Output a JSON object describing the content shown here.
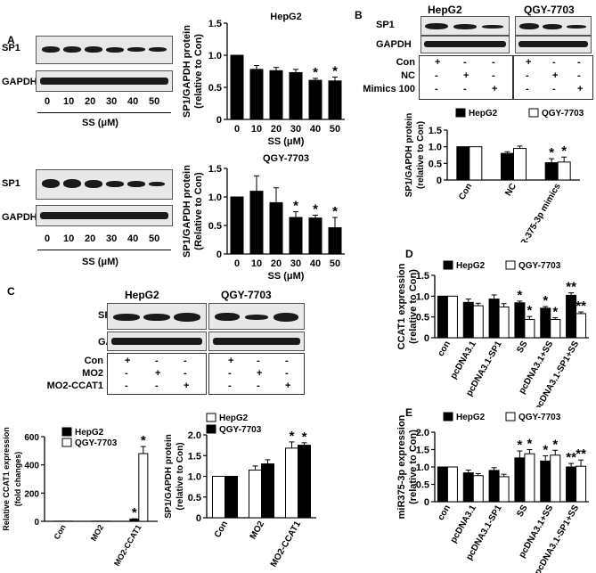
{
  "panel_labels": {
    "A": "A",
    "B": "B",
    "C": "C",
    "D": "D",
    "E": "E"
  },
  "blot_labels": {
    "sp1": "SP1",
    "gapdh": "GAPDH"
  },
  "panelA": {
    "top": {
      "doses": [
        "0",
        "10",
        "20",
        "30",
        "40",
        "50"
      ],
      "xaxis_label": "SS (μM)"
    },
    "bottom": {
      "doses": [
        "0",
        "10",
        "20",
        "30",
        "40",
        "50"
      ],
      "xaxis_label": "SS (μM)"
    }
  },
  "panelB": {
    "cell_lines": [
      "HepG2",
      "QGY-7703"
    ],
    "conditions": [
      {
        "name": "Con",
        "marks": [
          "+",
          "-",
          "-",
          "+",
          "-",
          "-"
        ]
      },
      {
        "name": "NC",
        "marks": [
          "-",
          "+",
          "-",
          "-",
          "+",
          "-"
        ]
      },
      {
        "name": "Mimics 100",
        "marks": [
          "-",
          "-",
          "+",
          "-",
          "-",
          "+"
        ]
      }
    ]
  },
  "panelC": {
    "cell_lines": [
      "HepG2",
      "QGY-7703"
    ],
    "conditions": [
      {
        "name": "Con",
        "marks": [
          "+",
          "-",
          "-",
          "+",
          "-",
          "-"
        ]
      },
      {
        "name": "MO2",
        "marks": [
          "-",
          "+",
          "-",
          "-",
          "+",
          "-"
        ]
      },
      {
        "name": "MO2-CCAT1",
        "marks": [
          "-",
          "-",
          "+",
          "-",
          "-",
          "+"
        ]
      }
    ]
  },
  "chart_data": [
    {
      "id": "A1",
      "type": "bar",
      "title": "HepG2",
      "ylabel": "SP1/GAPDH protein (relative to Con)",
      "xlabel": "SS (μM)",
      "categories": [
        "0",
        "10",
        "20",
        "30",
        "40",
        "50"
      ],
      "series": [
        {
          "values": [
            1.0,
            0.78,
            0.76,
            0.73,
            0.61,
            0.6
          ],
          "errors": [
            0,
            0.06,
            0.05,
            0.05,
            0.03,
            0.06
          ],
          "sig": [
            "",
            "",
            "",
            "",
            "*",
            "*"
          ],
          "color": "#000000"
        }
      ],
      "ylim": [
        0,
        1.5
      ],
      "yticks": [
        "0",
        "0.5",
        "1.0",
        "1.5"
      ]
    },
    {
      "id": "A2",
      "type": "bar",
      "title": "QGY-7703",
      "ylabel": "SP1/GAPDH protein (Relative to Con)",
      "xlabel": "SS (μM)",
      "categories": [
        "0",
        "10",
        "20",
        "30",
        "40",
        "50"
      ],
      "series": [
        {
          "values": [
            1.0,
            1.1,
            0.9,
            0.64,
            0.63,
            0.46
          ],
          "errors": [
            0,
            0.27,
            0.26,
            0.1,
            0.05,
            0.18
          ],
          "sig": [
            "",
            "",
            "",
            "*",
            "*",
            "*"
          ],
          "color": "#000000"
        }
      ],
      "ylim": [
        0,
        1.5
      ],
      "yticks": [
        "0",
        "0.5",
        "1.0",
        "1.5"
      ]
    },
    {
      "id": "B",
      "type": "bar",
      "ylabel": "SP1/GAPDH protein (relative to Con)",
      "categories": [
        "Con",
        "NC",
        "miR-375-3p mimics"
      ],
      "legend": [
        "HepG2",
        "QGY-7703"
      ],
      "series": [
        {
          "name": "HepG2",
          "values": [
            1.0,
            0.8,
            0.52
          ],
          "errors": [
            0,
            0.05,
            0.12
          ],
          "sig": [
            "",
            "",
            "*"
          ],
          "color": "#000000"
        },
        {
          "name": "QGY-7703",
          "values": [
            1.0,
            0.95,
            0.54
          ],
          "errors": [
            0,
            0.07,
            0.15
          ],
          "sig": [
            "",
            "",
            "*"
          ],
          "color": "#ffffff"
        }
      ],
      "ylim": [
        0,
        1.5
      ],
      "yticks": [
        "0",
        "0.5",
        "1.0",
        "1.5"
      ]
    },
    {
      "id": "C1",
      "type": "bar",
      "ylabel": "Relative CCAT1 expression (fold changes)",
      "categories": [
        "Con",
        "MO2",
        "MO2-CCAT1"
      ],
      "legend": [
        "HepG2",
        "QGY-7703"
      ],
      "series": [
        {
          "name": "HepG2",
          "values": [
            1,
            1,
            15
          ],
          "errors": [
            0,
            0,
            3
          ],
          "sig": [
            "",
            "",
            "*"
          ],
          "color": "#000000"
        },
        {
          "name": "QGY-7703",
          "values": [
            1,
            1,
            480
          ],
          "errors": [
            0,
            0,
            50
          ],
          "sig": [
            "",
            "",
            "*"
          ],
          "color": "#ffffff"
        }
      ],
      "ylim": [
        0,
        600
      ],
      "yticks": [
        "0",
        "200",
        "400",
        "600"
      ]
    },
    {
      "id": "C2",
      "type": "bar",
      "ylabel": "SP1/GAPDH protein (relative to Con)",
      "categories": [
        "Con",
        "MO2",
        "MO2-CCAT1"
      ],
      "legend": [
        "HepG2",
        "QGY-7703"
      ],
      "series": [
        {
          "name": "HepG2",
          "values": [
            1.0,
            1.15,
            1.68
          ],
          "errors": [
            0,
            0.1,
            0.15
          ],
          "sig": [
            "",
            "",
            "*"
          ],
          "color": "#ffffff"
        },
        {
          "name": "QGY-7703",
          "values": [
            1.0,
            1.3,
            1.75
          ],
          "errors": [
            0,
            0.1,
            0.06
          ],
          "sig": [
            "",
            "",
            "*"
          ],
          "color": "#000000"
        }
      ],
      "ylim": [
        0,
        2.0
      ],
      "yticks": [
        "0",
        "0.5",
        "1.0",
        "1.5",
        "2.0"
      ]
    },
    {
      "id": "D",
      "type": "bar",
      "ylabel": "CCAT1 expression (relative to Con)",
      "categories": [
        "con",
        "pcDNA3.1",
        "pcDNA3.1-SP1",
        "SS",
        "pcDNA3.1+SS",
        "pcDNA3.1-SP1+SS"
      ],
      "legend": [
        "HepG2",
        "QGY-7703"
      ],
      "series": [
        {
          "name": "HepG2",
          "values": [
            1.0,
            0.85,
            0.93,
            0.84,
            0.71,
            1.02
          ],
          "errors": [
            0,
            0.08,
            0.1,
            0.04,
            0.04,
            0.06
          ],
          "sig": [
            "",
            "",
            "",
            "*",
            "*",
            "**"
          ],
          "color": "#000000"
        },
        {
          "name": "QGY-7703",
          "values": [
            1.0,
            0.77,
            0.74,
            0.44,
            0.44,
            0.58
          ],
          "errors": [
            0,
            0.06,
            0.08,
            0.07,
            0.04,
            0.04
          ],
          "sig": [
            "",
            "",
            "",
            "*",
            "*",
            "**"
          ],
          "color": "#ffffff"
        }
      ],
      "ylim": [
        0,
        1.5
      ],
      "yticks": [
        "0",
        "0.5",
        "1.0",
        "1.5"
      ]
    },
    {
      "id": "E",
      "type": "bar",
      "ylabel": "miR375-3p expression (relative to Con)",
      "categories": [
        "con",
        "pcDNA3.1",
        "pcDNA3.1-SP1",
        "SS",
        "pcDNA3.1+SS",
        "pcDNA3.1-SP1+SS"
      ],
      "legend": [
        "HepG2",
        "QGY-7703"
      ],
      "series": [
        {
          "name": "HepG2",
          "values": [
            1.0,
            0.83,
            0.9,
            1.26,
            1.17,
            1.0
          ],
          "errors": [
            0,
            0.08,
            0.08,
            0.2,
            0.15,
            0.1
          ],
          "sig": [
            "",
            "",
            "",
            "*",
            "*",
            "**"
          ],
          "color": "#000000"
        },
        {
          "name": "QGY-7703",
          "values": [
            1.0,
            0.75,
            0.72,
            1.38,
            1.34,
            1.02
          ],
          "errors": [
            0,
            0.06,
            0.07,
            0.12,
            0.14,
            0.18
          ],
          "sig": [
            "",
            "",
            "",
            "*",
            "*",
            "**"
          ],
          "color": "#ffffff"
        }
      ],
      "ylim": [
        0,
        2.0
      ],
      "yticks": [
        "0",
        "0.5",
        "1.0",
        "1.5",
        "2.0"
      ]
    }
  ]
}
